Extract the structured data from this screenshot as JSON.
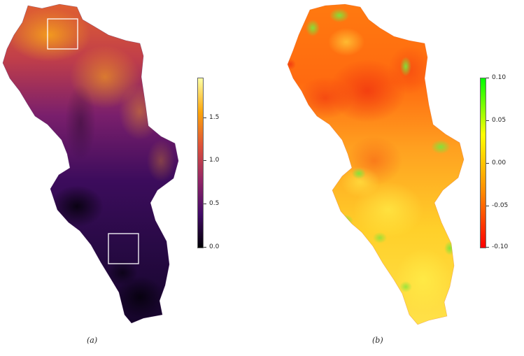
{
  "panels": [
    {
      "label": "(a)",
      "legend": {
        "ticks": [
          "1.5",
          "1.0",
          "0.5",
          "0.0"
        ],
        "values": [
          1.5,
          1.0,
          0.5,
          0.0
        ],
        "range": [
          0.0,
          1.9
        ],
        "palette": "inferno",
        "colors": [
          "#000004",
          "#420a68",
          "#932667",
          "#dd513a",
          "#fca50a",
          "#fcffa4"
        ]
      },
      "highlight_boxes": 2
    },
    {
      "label": "(b)",
      "legend": {
        "ticks": [
          "0.10",
          "0.05",
          "0.00",
          "-0.05",
          "-0.10"
        ],
        "values": [
          0.1,
          0.05,
          0.0,
          -0.05,
          -0.1
        ],
        "range": [
          -0.1,
          0.1
        ],
        "palette": "red-yellow-green",
        "colors": [
          "#ff0000",
          "#ff8c00",
          "#ffff00",
          "#00ff00"
        ]
      }
    }
  ]
}
